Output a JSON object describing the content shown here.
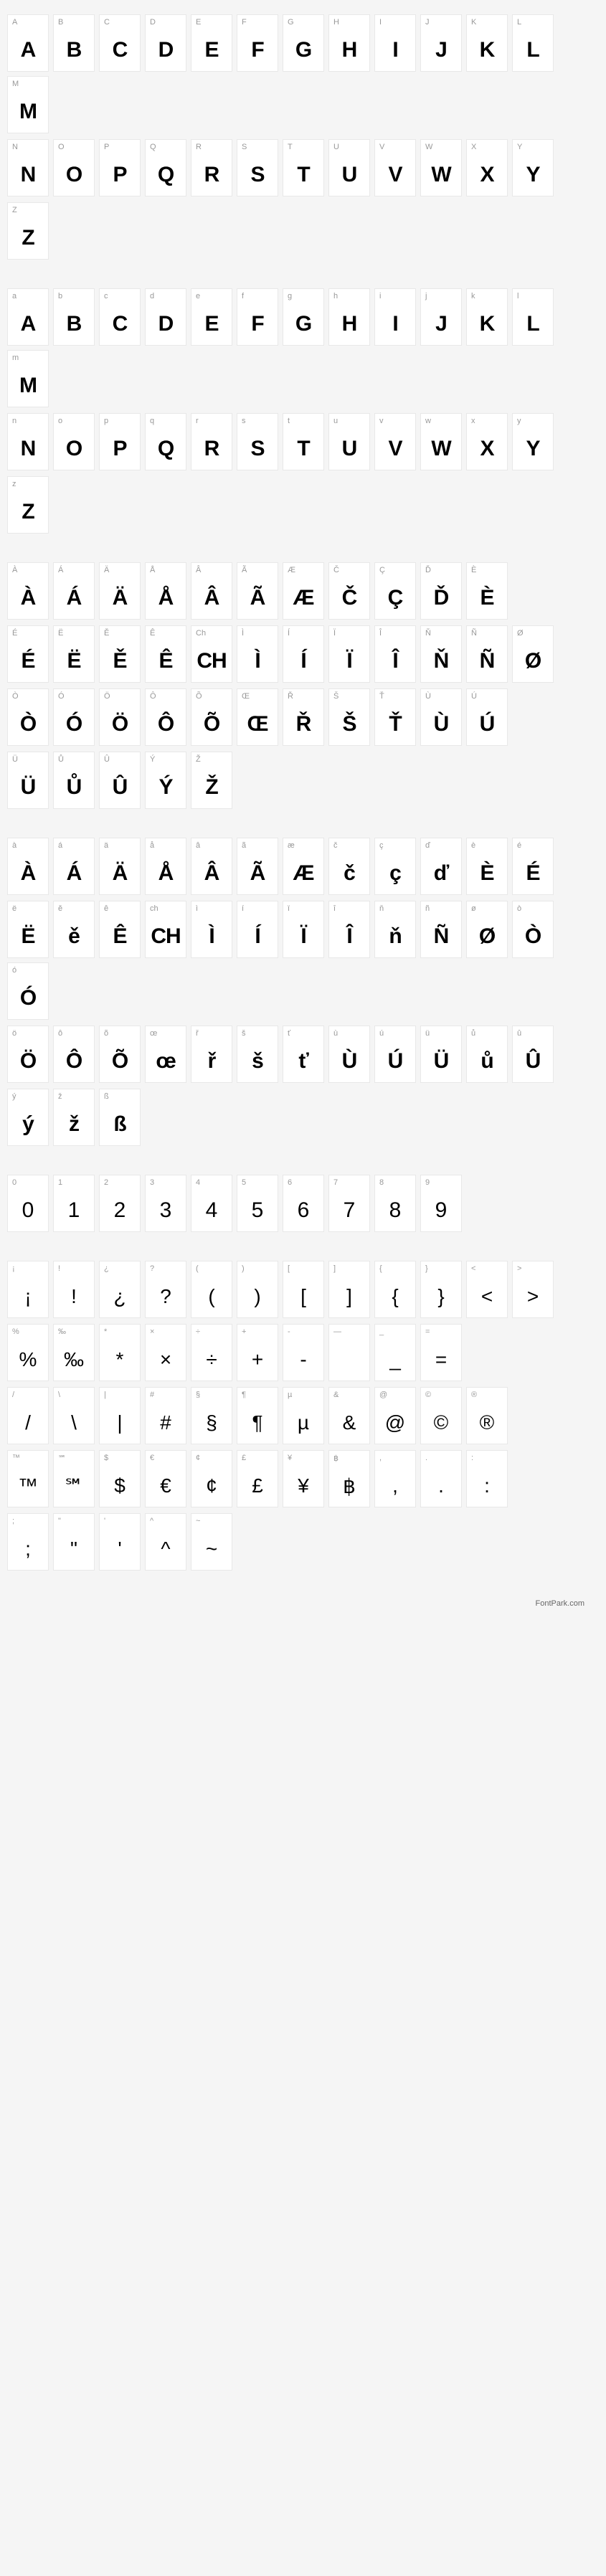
{
  "footer": "FontPark.com",
  "sections": [
    {
      "name": "uppercase",
      "rows": [
        [
          {
            "label": "A",
            "glyph": "A"
          },
          {
            "label": "B",
            "glyph": "B"
          },
          {
            "label": "C",
            "glyph": "C"
          },
          {
            "label": "D",
            "glyph": "D"
          },
          {
            "label": "E",
            "glyph": "E"
          },
          {
            "label": "F",
            "glyph": "F"
          },
          {
            "label": "G",
            "glyph": "G"
          },
          {
            "label": "H",
            "glyph": "H"
          },
          {
            "label": "I",
            "glyph": "I"
          },
          {
            "label": "J",
            "glyph": "J"
          },
          {
            "label": "K",
            "glyph": "K"
          },
          {
            "label": "L",
            "glyph": "L"
          },
          {
            "label": "M",
            "glyph": "M"
          }
        ],
        [
          {
            "label": "N",
            "glyph": "N"
          },
          {
            "label": "O",
            "glyph": "O"
          },
          {
            "label": "P",
            "glyph": "P"
          },
          {
            "label": "Q",
            "glyph": "Q"
          },
          {
            "label": "R",
            "glyph": "R"
          },
          {
            "label": "S",
            "glyph": "S"
          },
          {
            "label": "T",
            "glyph": "T"
          },
          {
            "label": "U",
            "glyph": "U"
          },
          {
            "label": "V",
            "glyph": "V"
          },
          {
            "label": "W",
            "glyph": "W"
          },
          {
            "label": "X",
            "glyph": "X"
          },
          {
            "label": "Y",
            "glyph": "Y"
          }
        ],
        [
          {
            "label": "Z",
            "glyph": "Z"
          }
        ]
      ]
    },
    {
      "name": "lowercase",
      "rows": [
        [
          {
            "label": "a",
            "glyph": "A"
          },
          {
            "label": "b",
            "glyph": "B"
          },
          {
            "label": "c",
            "glyph": "C"
          },
          {
            "label": "d",
            "glyph": "D"
          },
          {
            "label": "e",
            "glyph": "E"
          },
          {
            "label": "f",
            "glyph": "F"
          },
          {
            "label": "g",
            "glyph": "G"
          },
          {
            "label": "h",
            "glyph": "H"
          },
          {
            "label": "i",
            "glyph": "I"
          },
          {
            "label": "j",
            "glyph": "J"
          },
          {
            "label": "k",
            "glyph": "K"
          },
          {
            "label": "l",
            "glyph": "L"
          },
          {
            "label": "m",
            "glyph": "M"
          }
        ],
        [
          {
            "label": "n",
            "glyph": "N"
          },
          {
            "label": "o",
            "glyph": "O"
          },
          {
            "label": "p",
            "glyph": "P"
          },
          {
            "label": "q",
            "glyph": "Q"
          },
          {
            "label": "r",
            "glyph": "R"
          },
          {
            "label": "s",
            "glyph": "S"
          },
          {
            "label": "t",
            "glyph": "T"
          },
          {
            "label": "u",
            "glyph": "U"
          },
          {
            "label": "v",
            "glyph": "V"
          },
          {
            "label": "w",
            "glyph": "W"
          },
          {
            "label": "x",
            "glyph": "X"
          },
          {
            "label": "y",
            "glyph": "Y"
          }
        ],
        [
          {
            "label": "z",
            "glyph": "Z"
          }
        ]
      ]
    },
    {
      "name": "accented-upper",
      "rows": [
        [
          {
            "label": "À",
            "glyph": "À"
          },
          {
            "label": "Á",
            "glyph": "Á"
          },
          {
            "label": "Ä",
            "glyph": "Ä"
          },
          {
            "label": "Å",
            "glyph": "Å"
          },
          {
            "label": "Â",
            "glyph": "Â"
          },
          {
            "label": "Ã",
            "glyph": "Ã"
          },
          {
            "label": "Æ",
            "glyph": "Æ"
          },
          {
            "label": "Č",
            "glyph": "Č"
          },
          {
            "label": "Ç",
            "glyph": "Ç"
          },
          {
            "label": "Ď",
            "glyph": "Ď"
          },
          {
            "label": "È",
            "glyph": "È"
          }
        ],
        [
          {
            "label": "É",
            "glyph": "É"
          },
          {
            "label": "Ë",
            "glyph": "Ë"
          },
          {
            "label": "Ě",
            "glyph": "Ě"
          },
          {
            "label": "Ê",
            "glyph": "Ê"
          },
          {
            "label": "Ch",
            "glyph": "CH"
          },
          {
            "label": "Ì",
            "glyph": "Ì"
          },
          {
            "label": "Í",
            "glyph": "Í"
          },
          {
            "label": "Ï",
            "glyph": "Ï"
          },
          {
            "label": "Î",
            "glyph": "Î"
          },
          {
            "label": "Ň",
            "glyph": "Ň"
          },
          {
            "label": "Ñ",
            "glyph": "Ñ"
          },
          {
            "label": "Ø",
            "glyph": "Ø"
          }
        ],
        [
          {
            "label": "Ò",
            "glyph": "Ò"
          },
          {
            "label": "Ó",
            "glyph": "Ó"
          },
          {
            "label": "Ö",
            "glyph": "Ö"
          },
          {
            "label": "Ô",
            "glyph": "Ô"
          },
          {
            "label": "Õ",
            "glyph": "Õ"
          },
          {
            "label": "Œ",
            "glyph": "Œ"
          },
          {
            "label": "Ř",
            "glyph": "Ř"
          },
          {
            "label": "Š",
            "glyph": "Š"
          },
          {
            "label": "Ť",
            "glyph": "Ť"
          },
          {
            "label": "Ù",
            "glyph": "Ù"
          },
          {
            "label": "Ú",
            "glyph": "Ú"
          }
        ],
        [
          {
            "label": "Ü",
            "glyph": "Ü"
          },
          {
            "label": "Ů",
            "glyph": "Ů"
          },
          {
            "label": "Û",
            "glyph": "Û"
          },
          {
            "label": "Ý",
            "glyph": "Ý"
          },
          {
            "label": "Ž",
            "glyph": "Ž"
          }
        ]
      ]
    },
    {
      "name": "accented-lower",
      "rows": [
        [
          {
            "label": "à",
            "glyph": "À"
          },
          {
            "label": "á",
            "glyph": "Á"
          },
          {
            "label": "ä",
            "glyph": "Ä"
          },
          {
            "label": "å",
            "glyph": "Å"
          },
          {
            "label": "â",
            "glyph": "Â"
          },
          {
            "label": "ã",
            "glyph": "Ã"
          },
          {
            "label": "æ",
            "glyph": "Æ"
          },
          {
            "label": "č",
            "glyph": "č"
          },
          {
            "label": "ç",
            "glyph": "ç"
          },
          {
            "label": "ď",
            "glyph": "ď"
          },
          {
            "label": "è",
            "glyph": "È"
          },
          {
            "label": "é",
            "glyph": "É"
          }
        ],
        [
          {
            "label": "ë",
            "glyph": "Ë"
          },
          {
            "label": "ě",
            "glyph": "ě"
          },
          {
            "label": "ê",
            "glyph": "Ê"
          },
          {
            "label": "ch",
            "glyph": "CH"
          },
          {
            "label": "ì",
            "glyph": "Ì"
          },
          {
            "label": "í",
            "glyph": "Í"
          },
          {
            "label": "ï",
            "glyph": "Ï"
          },
          {
            "label": "î",
            "glyph": "Î"
          },
          {
            "label": "ň",
            "glyph": "ň"
          },
          {
            "label": "ñ",
            "glyph": "Ñ"
          },
          {
            "label": "ø",
            "glyph": "Ø"
          },
          {
            "label": "ò",
            "glyph": "Ò"
          },
          {
            "label": "ó",
            "glyph": "Ó"
          }
        ],
        [
          {
            "label": "ö",
            "glyph": "Ö"
          },
          {
            "label": "ô",
            "glyph": "Ô"
          },
          {
            "label": "õ",
            "glyph": "Õ"
          },
          {
            "label": "œ",
            "glyph": "œ"
          },
          {
            "label": "ř",
            "glyph": "ř"
          },
          {
            "label": "š",
            "glyph": "š"
          },
          {
            "label": "ť",
            "glyph": "ť"
          },
          {
            "label": "ù",
            "glyph": "Ù"
          },
          {
            "label": "ú",
            "glyph": "Ú"
          },
          {
            "label": "ü",
            "glyph": "Ü"
          },
          {
            "label": "ů",
            "glyph": "ů"
          },
          {
            "label": "û",
            "glyph": "Û"
          }
        ],
        [
          {
            "label": "ý",
            "glyph": "ý"
          },
          {
            "label": "ž",
            "glyph": "ž"
          },
          {
            "label": "ß",
            "glyph": "ß"
          }
        ]
      ]
    },
    {
      "name": "numbers",
      "glyphClass": "number",
      "rows": [
        [
          {
            "label": "0",
            "glyph": "0"
          },
          {
            "label": "1",
            "glyph": "1"
          },
          {
            "label": "2",
            "glyph": "2"
          },
          {
            "label": "3",
            "glyph": "3"
          },
          {
            "label": "4",
            "glyph": "4"
          },
          {
            "label": "5",
            "glyph": "5"
          },
          {
            "label": "6",
            "glyph": "6"
          },
          {
            "label": "7",
            "glyph": "7"
          },
          {
            "label": "8",
            "glyph": "8"
          },
          {
            "label": "9",
            "glyph": "9"
          }
        ]
      ]
    },
    {
      "name": "symbols",
      "glyphClass": "symbol",
      "rows": [
        [
          {
            "label": "¡",
            "glyph": "¡"
          },
          {
            "label": "!",
            "glyph": "!"
          },
          {
            "label": "¿",
            "glyph": "¿"
          },
          {
            "label": "?",
            "glyph": "?"
          },
          {
            "label": "(",
            "glyph": "("
          },
          {
            "label": ")",
            "glyph": ")"
          },
          {
            "label": "[",
            "glyph": "["
          },
          {
            "label": "]",
            "glyph": "]"
          },
          {
            "label": "{",
            "glyph": "{"
          },
          {
            "label": "}",
            "glyph": "}"
          },
          {
            "label": "<",
            "glyph": "<"
          },
          {
            "label": ">",
            "glyph": ">"
          }
        ],
        [
          {
            "label": "%",
            "glyph": "%"
          },
          {
            "label": "‰",
            "glyph": "‰"
          },
          {
            "label": "*",
            "glyph": "*"
          },
          {
            "label": "×",
            "glyph": "×"
          },
          {
            "label": "÷",
            "glyph": "÷"
          },
          {
            "label": "+",
            "glyph": "+"
          },
          {
            "label": "-",
            "glyph": "-"
          },
          {
            "label": "—",
            "glyph": ""
          },
          {
            "label": "_",
            "glyph": "_"
          },
          {
            "label": "=",
            "glyph": "="
          }
        ],
        [
          {
            "label": "/",
            "glyph": "/"
          },
          {
            "label": "\\",
            "glyph": "\\"
          },
          {
            "label": "|",
            "glyph": "|"
          },
          {
            "label": "#",
            "glyph": "#"
          },
          {
            "label": "§",
            "glyph": "§"
          },
          {
            "label": "¶",
            "glyph": "¶"
          },
          {
            "label": "µ",
            "glyph": "µ"
          },
          {
            "label": "&",
            "glyph": "&"
          },
          {
            "label": "@",
            "glyph": "@"
          },
          {
            "label": "©",
            "glyph": "©"
          },
          {
            "label": "®",
            "glyph": "®"
          }
        ],
        [
          {
            "label": "™",
            "glyph": "™"
          },
          {
            "label": "℠",
            "glyph": "℠"
          },
          {
            "label": "$",
            "glyph": "$"
          },
          {
            "label": "€",
            "glyph": "€"
          },
          {
            "label": "¢",
            "glyph": "¢"
          },
          {
            "label": "£",
            "glyph": "£"
          },
          {
            "label": "¥",
            "glyph": "¥"
          },
          {
            "label": "฿",
            "glyph": "฿"
          },
          {
            "label": ",",
            "glyph": ","
          },
          {
            "label": ".",
            "glyph": "."
          },
          {
            "label": ":",
            "glyph": ":"
          }
        ],
        [
          {
            "label": ";",
            "glyph": ";"
          },
          {
            "label": "\"",
            "glyph": "\""
          },
          {
            "label": "'",
            "glyph": "'"
          },
          {
            "label": "^",
            "glyph": "^"
          },
          {
            "label": "~",
            "glyph": "~"
          }
        ]
      ]
    }
  ]
}
